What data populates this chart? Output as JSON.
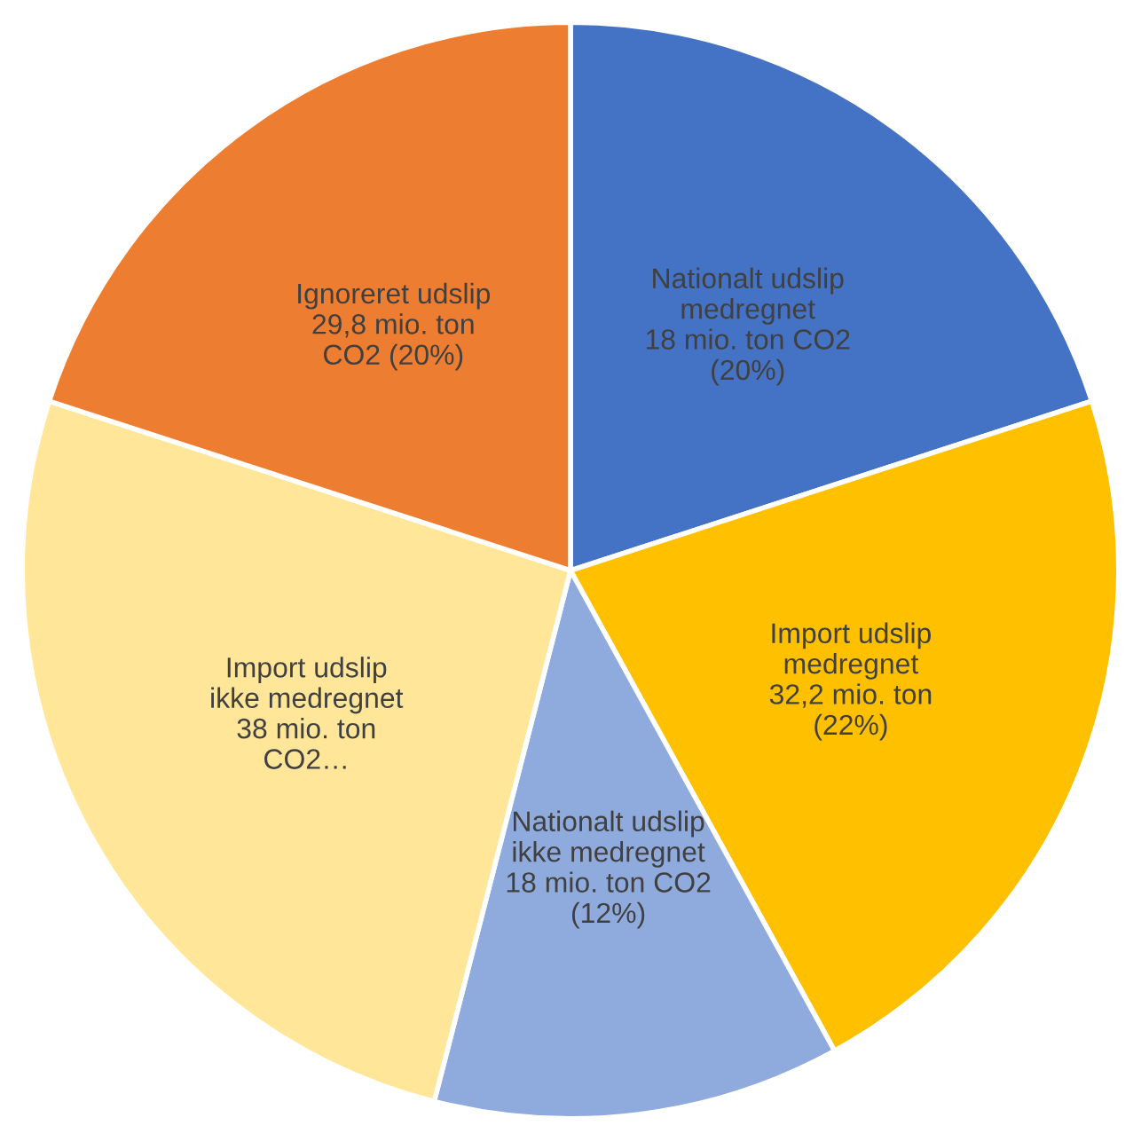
{
  "chart_data": {
    "type": "pie",
    "categories": [
      "Nationalt udslip\nmedregnet\n18 mio. ton CO2",
      "Import udslip\nmedregnet\n32,2 mio. ton",
      "Nationalt udslip\nikke medregnet\n18 mio. ton CO2",
      "Import udslip\nikke medregnet\n38 mio. ton\nCO2…",
      "Ignoreret udslip\n29,8 mio. ton\nCO2"
    ],
    "values": [
      20,
      22,
      12,
      26,
      20
    ],
    "value_labels": [
      "(20%)",
      "(22%)",
      "(12%)",
      null,
      "(20%)"
    ],
    "colors": [
      "#4472c4",
      "#ffc000",
      "#8faadc",
      "#ffe699",
      "#ed7d31"
    ],
    "legend": false
  }
}
